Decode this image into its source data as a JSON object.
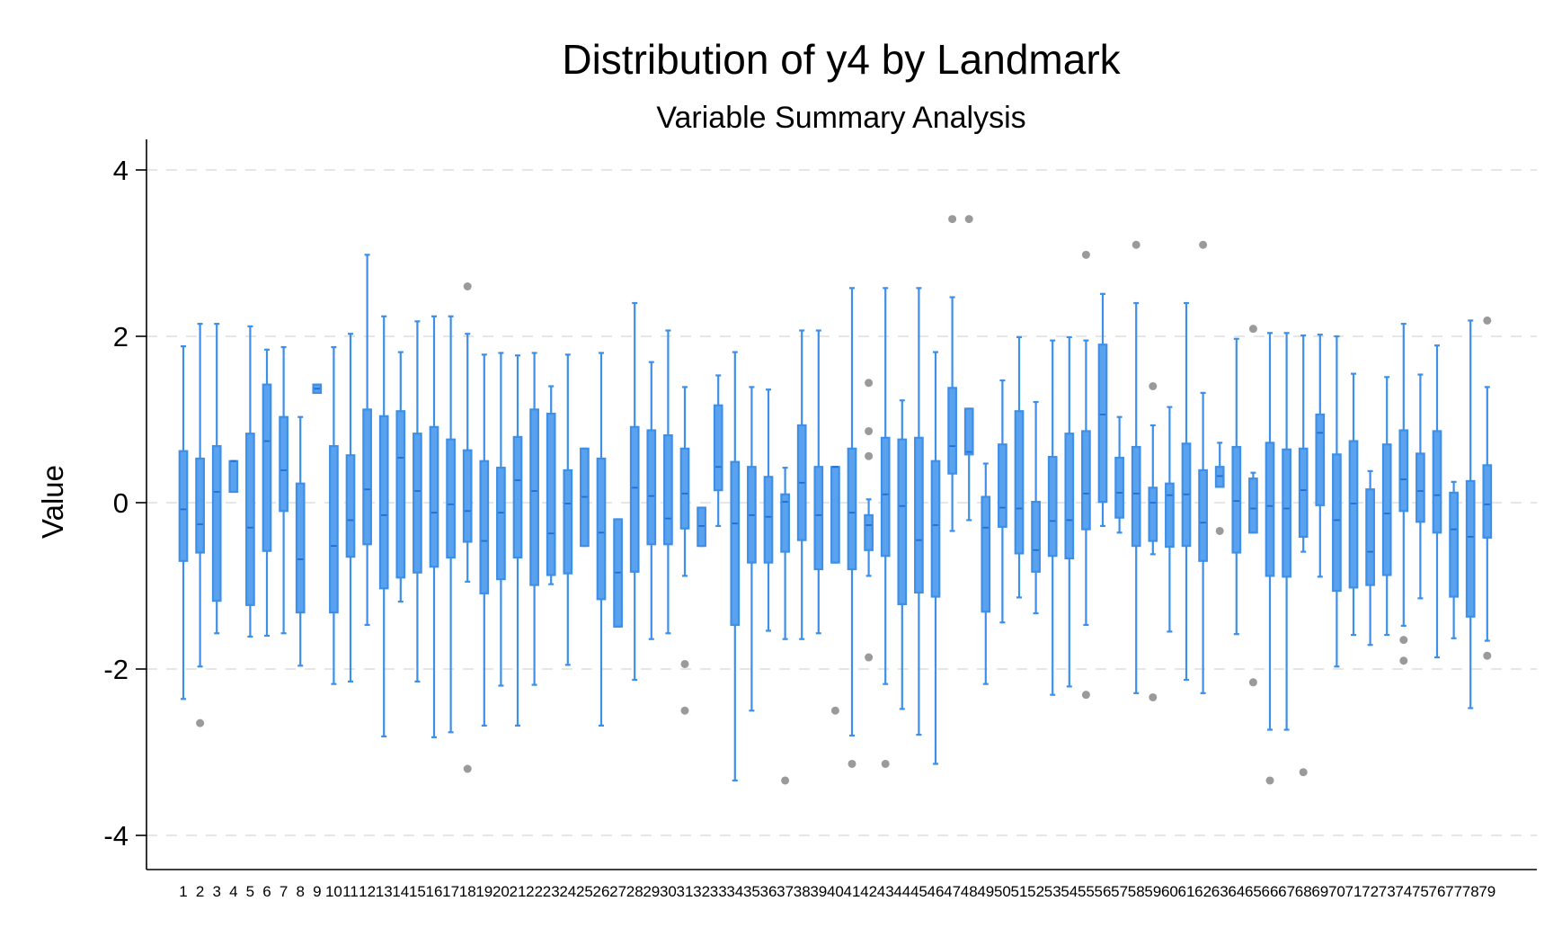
{
  "chart_data": {
    "type": "box",
    "title": "Distribution of y4 by Landmark",
    "subtitle": "Variable Summary Analysis",
    "xlabel": "",
    "ylabel": "Value",
    "ylim": [
      -4.4,
      4.4
    ],
    "yticks": [
      -4,
      -2,
      0,
      2,
      4
    ],
    "grid": true,
    "colors": {
      "box": "#3d8fe8",
      "box_fill": "#5aa2ee",
      "outlier": "#9a9a9a",
      "grid": "#e6e6e6"
    },
    "categories": [
      "1",
      "2",
      "3",
      "4",
      "5",
      "6",
      "7",
      "8",
      "9",
      "10",
      "11",
      "12",
      "13",
      "14",
      "15",
      "16",
      "17",
      "18",
      "19",
      "20",
      "21",
      "22",
      "23",
      "24",
      "25",
      "26",
      "27",
      "28",
      "29",
      "30",
      "31",
      "32",
      "33",
      "34",
      "35",
      "36",
      "37",
      "38",
      "39",
      "40",
      "41",
      "42",
      "43",
      "44",
      "45",
      "46",
      "47",
      "48",
      "49",
      "50",
      "51",
      "52",
      "53",
      "54",
      "55",
      "56",
      "57",
      "58",
      "59",
      "60",
      "61",
      "62",
      "63",
      "64",
      "65",
      "66",
      "67",
      "68",
      "69",
      "70",
      "71",
      "72",
      "73",
      "74",
      "75",
      "76",
      "77",
      "78",
      "79"
    ],
    "boxes": [
      {
        "min": -2.36,
        "q1": -0.7,
        "median": -0.08,
        "q3": 0.62,
        "max": 1.88,
        "outliers": []
      },
      {
        "min": -1.97,
        "q1": -0.6,
        "median": -0.26,
        "q3": 0.53,
        "max": 2.15,
        "outliers": [
          -2.65
        ]
      },
      {
        "min": -1.57,
        "q1": -1.18,
        "median": 0.13,
        "q3": 0.68,
        "max": 2.15,
        "outliers": []
      },
      {
        "min": 0.13,
        "q1": 0.13,
        "median": 0.5,
        "q3": 0.5,
        "max": 0.5,
        "outliers": []
      },
      {
        "min": -1.61,
        "q1": -1.23,
        "median": -0.3,
        "q3": 0.83,
        "max": 2.12,
        "outliers": []
      },
      {
        "min": -1.6,
        "q1": -0.58,
        "median": 0.74,
        "q3": 1.42,
        "max": 1.84,
        "outliers": []
      },
      {
        "min": -1.57,
        "q1": -0.1,
        "median": 0.39,
        "q3": 1.03,
        "max": 1.87,
        "outliers": []
      },
      {
        "min": -1.96,
        "q1": -1.32,
        "median": -0.68,
        "q3": 0.23,
        "max": 1.03,
        "outliers": []
      },
      {
        "min": 1.32,
        "q1": 1.32,
        "median": 1.37,
        "q3": 1.42,
        "max": 1.42,
        "outliers": []
      },
      {
        "min": -2.18,
        "q1": -1.32,
        "median": -0.52,
        "q3": 0.68,
        "max": 1.87,
        "outliers": []
      },
      {
        "min": -2.15,
        "q1": -0.65,
        "median": -0.21,
        "q3": 0.57,
        "max": 2.03,
        "outliers": []
      },
      {
        "min": -1.47,
        "q1": -0.5,
        "median": 0.16,
        "q3": 1.12,
        "max": 2.98,
        "outliers": []
      },
      {
        "min": -2.81,
        "q1": -1.03,
        "median": -0.15,
        "q3": 1.04,
        "max": 2.24,
        "outliers": []
      },
      {
        "min": -1.19,
        "q1": -0.9,
        "median": 0.54,
        "q3": 1.1,
        "max": 1.81,
        "outliers": []
      },
      {
        "min": -2.15,
        "q1": -0.84,
        "median": 0.14,
        "q3": 0.83,
        "max": 2.18,
        "outliers": []
      },
      {
        "min": -2.82,
        "q1": -0.77,
        "median": -0.12,
        "q3": 0.91,
        "max": 2.24,
        "outliers": []
      },
      {
        "min": -2.76,
        "q1": -0.66,
        "median": -0.02,
        "q3": 0.76,
        "max": 2.24,
        "outliers": []
      },
      {
        "min": -0.95,
        "q1": -0.47,
        "median": -0.1,
        "q3": 0.63,
        "max": 2.03,
        "outliers": [
          2.6,
          -3.2
        ]
      },
      {
        "min": -2.68,
        "q1": -1.09,
        "median": -0.46,
        "q3": 0.5,
        "max": 1.78,
        "outliers": []
      },
      {
        "min": -2.2,
        "q1": -0.92,
        "median": -0.12,
        "q3": 0.42,
        "max": 1.8,
        "outliers": []
      },
      {
        "min": -2.68,
        "q1": -0.66,
        "median": 0.27,
        "q3": 0.79,
        "max": 1.77,
        "outliers": []
      },
      {
        "min": -2.19,
        "q1": -0.99,
        "median": 0.14,
        "q3": 1.12,
        "max": 1.8,
        "outliers": []
      },
      {
        "min": -0.98,
        "q1": -0.87,
        "median": -0.37,
        "q3": 1.07,
        "max": 1.4,
        "outliers": []
      },
      {
        "min": -1.95,
        "q1": -0.85,
        "median": -0.01,
        "q3": 0.39,
        "max": 1.78,
        "outliers": []
      },
      {
        "min": -0.52,
        "q1": -0.52,
        "median": 0.07,
        "q3": 0.65,
        "max": 0.65,
        "outliers": []
      },
      {
        "min": -2.68,
        "q1": -1.16,
        "median": -0.36,
        "q3": 0.53,
        "max": 1.8,
        "outliers": []
      },
      {
        "min": -1.49,
        "q1": -1.49,
        "median": -0.84,
        "q3": -0.2,
        "max": -0.2,
        "outliers": []
      },
      {
        "min": -2.13,
        "q1": -0.83,
        "median": 0.18,
        "q3": 0.91,
        "max": 2.4,
        "outliers": []
      },
      {
        "min": -1.64,
        "q1": -0.5,
        "median": 0.08,
        "q3": 0.87,
        "max": 1.69,
        "outliers": []
      },
      {
        "min": -1.57,
        "q1": -0.5,
        "median": -0.19,
        "q3": 0.81,
        "max": 2.07,
        "outliers": []
      },
      {
        "min": -0.88,
        "q1": -0.31,
        "median": 0.11,
        "q3": 0.65,
        "max": 1.39,
        "outliers": [
          -1.94,
          -2.5
        ]
      },
      {
        "min": -0.52,
        "q1": -0.52,
        "median": -0.28,
        "q3": -0.06,
        "max": -0.06,
        "outliers": []
      },
      {
        "min": -0.28,
        "q1": 0.15,
        "median": 0.43,
        "q3": 1.17,
        "max": 1.53,
        "outliers": []
      },
      {
        "min": -3.34,
        "q1": -1.47,
        "median": -0.25,
        "q3": 0.49,
        "max": 1.81,
        "outliers": []
      },
      {
        "min": -2.5,
        "q1": -0.72,
        "median": -0.15,
        "q3": 0.43,
        "max": 1.39,
        "outliers": []
      },
      {
        "min": -1.54,
        "q1": -0.72,
        "median": -0.17,
        "q3": 0.31,
        "max": 1.36,
        "outliers": []
      },
      {
        "min": -1.64,
        "q1": -0.59,
        "median": 0.01,
        "q3": 0.1,
        "max": 0.42,
        "outliers": [
          -3.34
        ]
      },
      {
        "min": -1.64,
        "q1": -0.45,
        "median": 0.24,
        "q3": 0.93,
        "max": 2.07,
        "outliers": []
      },
      {
        "min": -1.57,
        "q1": -0.8,
        "median": -0.15,
        "q3": 0.43,
        "max": 2.07,
        "outliers": []
      },
      {
        "min": -0.72,
        "q1": -0.72,
        "median": 0.43,
        "q3": 0.43,
        "max": 0.43,
        "outliers": [
          -2.5
        ]
      },
      {
        "min": -2.8,
        "q1": -0.8,
        "median": -0.12,
        "q3": 0.65,
        "max": 2.58,
        "outliers": [
          -3.14
        ]
      },
      {
        "min": -0.88,
        "q1": -0.57,
        "median": -0.27,
        "q3": -0.15,
        "max": 0.04,
        "outliers": [
          1.44,
          0.86,
          0.56,
          -1.86
        ]
      },
      {
        "min": -2.18,
        "q1": -0.64,
        "median": 0.1,
        "q3": 0.78,
        "max": 2.58,
        "outliers": [
          -3.14
        ]
      },
      {
        "min": -2.48,
        "q1": -1.22,
        "median": -0.04,
        "q3": 0.76,
        "max": 1.23,
        "outliers": []
      },
      {
        "min": -2.79,
        "q1": -1.08,
        "median": -0.45,
        "q3": 0.78,
        "max": 2.58,
        "outliers": []
      },
      {
        "min": -3.14,
        "q1": -1.13,
        "median": -0.27,
        "q3": 0.5,
        "max": 1.81,
        "outliers": []
      },
      {
        "min": -0.34,
        "q1": 0.35,
        "median": 0.68,
        "q3": 1.38,
        "max": 2.47,
        "outliers": [
          3.41
        ]
      },
      {
        "min": -0.21,
        "q1": 0.58,
        "median": 0.61,
        "q3": 1.13,
        "max": 1.13,
        "outliers": [
          3.41
        ]
      },
      {
        "min": -2.18,
        "q1": -1.31,
        "median": -0.3,
        "q3": 0.07,
        "max": 0.47,
        "outliers": []
      },
      {
        "min": -1.44,
        "q1": -0.29,
        "median": -0.06,
        "q3": 0.7,
        "max": 1.47,
        "outliers": []
      },
      {
        "min": -1.14,
        "q1": -0.61,
        "median": -0.07,
        "q3": 1.1,
        "max": 1.99,
        "outliers": []
      },
      {
        "min": -1.33,
        "q1": -0.83,
        "median": -0.57,
        "q3": 0.01,
        "max": 1.21,
        "outliers": []
      },
      {
        "min": -2.31,
        "q1": -0.64,
        "median": -0.22,
        "q3": 0.55,
        "max": 1.95,
        "outliers": []
      },
      {
        "min": -2.21,
        "q1": -0.67,
        "median": -0.21,
        "q3": 0.83,
        "max": 1.99,
        "outliers": []
      },
      {
        "min": -1.47,
        "q1": -0.32,
        "median": 0.11,
        "q3": 0.86,
        "max": 1.95,
        "outliers": [
          2.98,
          -2.31
        ]
      },
      {
        "min": -0.28,
        "q1": 0.01,
        "median": 1.06,
        "q3": 1.9,
        "max": 2.51,
        "outliers": []
      },
      {
        "min": -0.36,
        "q1": -0.18,
        "median": 0.12,
        "q3": 0.54,
        "max": 1.03,
        "outliers": []
      },
      {
        "min": -2.29,
        "q1": -0.52,
        "median": 0.11,
        "q3": 0.67,
        "max": 2.4,
        "outliers": [
          3.1
        ]
      },
      {
        "min": -0.62,
        "q1": -0.46,
        "median": 0.0,
        "q3": 0.18,
        "max": 0.93,
        "outliers": [
          1.4,
          -2.34
        ]
      },
      {
        "min": -1.55,
        "q1": -0.53,
        "median": 0.09,
        "q3": 0.23,
        "max": 1.15,
        "outliers": []
      },
      {
        "min": -2.13,
        "q1": -0.52,
        "median": 0.1,
        "q3": 0.71,
        "max": 2.4,
        "outliers": []
      },
      {
        "min": -2.29,
        "q1": -0.7,
        "median": -0.24,
        "q3": 0.39,
        "max": 1.32,
        "outliers": [
          3.1
        ]
      },
      {
        "min": 0.19,
        "q1": 0.19,
        "median": 0.32,
        "q3": 0.43,
        "max": 0.72,
        "outliers": [
          -0.34
        ]
      },
      {
        "min": -1.58,
        "q1": -0.6,
        "median": 0.02,
        "q3": 0.67,
        "max": 1.97,
        "outliers": []
      },
      {
        "min": -0.36,
        "q1": -0.36,
        "median": -0.07,
        "q3": 0.29,
        "max": 0.36,
        "outliers": [
          2.09,
          -2.16
        ]
      },
      {
        "min": -2.73,
        "q1": -0.88,
        "median": -0.04,
        "q3": 0.72,
        "max": 2.04,
        "outliers": [
          -3.34
        ]
      },
      {
        "min": -2.73,
        "q1": -0.89,
        "median": -0.07,
        "q3": 0.64,
        "max": 2.04,
        "outliers": []
      },
      {
        "min": -0.59,
        "q1": -0.41,
        "median": 0.15,
        "q3": 0.65,
        "max": 2.01,
        "outliers": [
          -3.24
        ]
      },
      {
        "min": -0.89,
        "q1": -0.03,
        "median": 0.84,
        "q3": 1.06,
        "max": 2.02,
        "outliers": []
      },
      {
        "min": -1.97,
        "q1": -1.06,
        "median": -0.21,
        "q3": 0.58,
        "max": 2.0,
        "outliers": []
      },
      {
        "min": -1.59,
        "q1": -1.02,
        "median": -0.01,
        "q3": 0.74,
        "max": 1.55,
        "outliers": []
      },
      {
        "min": -1.71,
        "q1": -0.99,
        "median": -0.59,
        "q3": 0.16,
        "max": 0.38,
        "outliers": []
      },
      {
        "min": -1.59,
        "q1": -0.87,
        "median": -0.13,
        "q3": 0.7,
        "max": 1.51,
        "outliers": []
      },
      {
        "min": -1.48,
        "q1": -0.1,
        "median": 0.28,
        "q3": 0.87,
        "max": 2.15,
        "outliers": [
          -1.65,
          -1.9
        ]
      },
      {
        "min": -1.15,
        "q1": -0.23,
        "median": 0.14,
        "q3": 0.59,
        "max": 1.54,
        "outliers": []
      },
      {
        "min": -1.86,
        "q1": -0.36,
        "median": 0.09,
        "q3": 0.86,
        "max": 1.89,
        "outliers": []
      },
      {
        "min": -1.63,
        "q1": -1.13,
        "median": -0.32,
        "q3": 0.12,
        "max": 0.25,
        "outliers": []
      },
      {
        "min": -2.47,
        "q1": -1.37,
        "median": -0.41,
        "q3": 0.26,
        "max": 2.19,
        "outliers": []
      },
      {
        "min": -1.66,
        "q1": -0.42,
        "median": -0.02,
        "q3": 0.45,
        "max": 1.39,
        "outliers": [
          2.19,
          -1.84
        ]
      }
    ]
  }
}
